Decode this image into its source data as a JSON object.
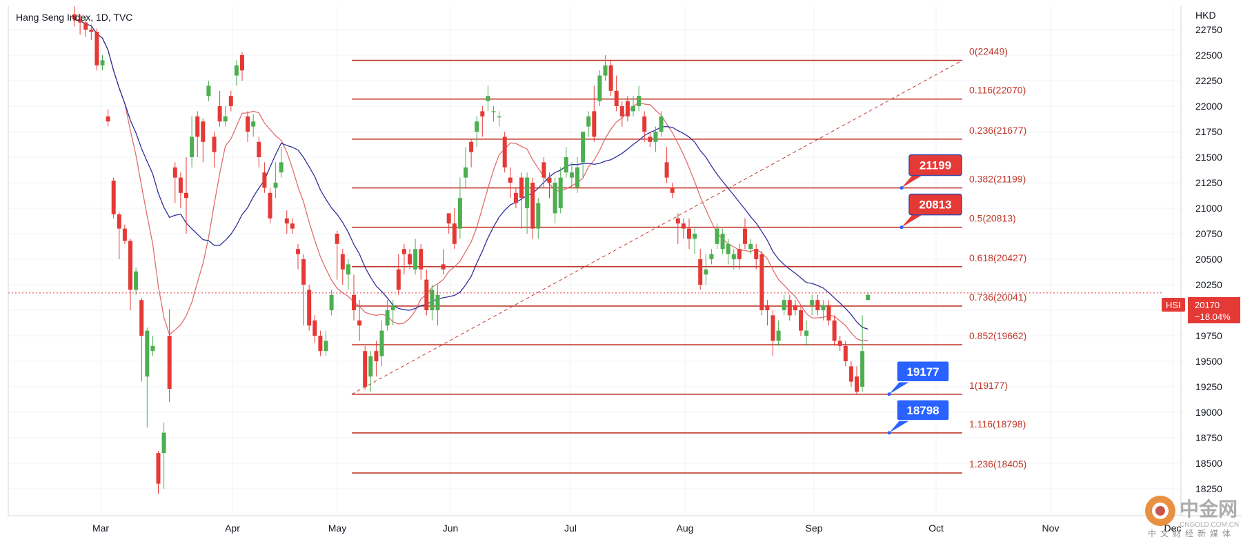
{
  "header": {
    "title": "Hang Seng Index, 1D, TVC"
  },
  "currency": "HKD",
  "symbol_badge": "HSI",
  "last_price": "20170",
  "last_change": "−18.04%",
  "watermark": {
    "cn_name": "中金网",
    "url": "CNGOLD.COM.CN",
    "tagline": "中文财经新媒体"
  },
  "colors": {
    "up": "#4caf50",
    "down": "#e53935",
    "fib": "#c0392b",
    "ma_fast": "#e06c6c",
    "ma_slow": "#2e2e9a",
    "callout_red": "#e53935",
    "callout_blue": "#2962ff",
    "price_badge": "#e53935"
  },
  "chart_data": {
    "type": "candlestick",
    "title": "Hang Seng Index, 1D, TVC",
    "ylabel": "HKD",
    "ylim": [
      18000,
      22900
    ],
    "y_ticks": [
      22750,
      22500,
      22250,
      22000,
      21750,
      21500,
      21250,
      21000,
      20750,
      20500,
      20250,
      20000,
      19750,
      19500,
      19250,
      19000,
      18750,
      18500,
      18250
    ],
    "x_ticks": [
      "Mar",
      "Apr",
      "May",
      "Jun",
      "Jul",
      "Aug",
      "Sep",
      "Oct",
      "Nov",
      "Dec"
    ],
    "current_price": 20170,
    "fib_levels": [
      {
        "ratio": "0",
        "value": 22449
      },
      {
        "ratio": "0.116",
        "value": 22070
      },
      {
        "ratio": "0.236",
        "value": 21677
      },
      {
        "ratio": "0.382",
        "value": 21199
      },
      {
        "ratio": "0.5",
        "value": 20813
      },
      {
        "ratio": "0.618",
        "value": 20427
      },
      {
        "ratio": "0.736",
        "value": 20041
      },
      {
        "ratio": "0.852",
        "value": 19662
      },
      {
        "ratio": "1",
        "value": 19177
      },
      {
        "ratio": "1.116",
        "value": 18798
      },
      {
        "ratio": "1.236",
        "value": 18405
      }
    ],
    "callouts": [
      {
        "value": "21199",
        "color": "red"
      },
      {
        "value": "20813",
        "color": "red"
      },
      {
        "value": "19177",
        "color": "blue"
      },
      {
        "value": "18798",
        "color": "blue"
      }
    ],
    "trend_line": {
      "from_value": 19177,
      "to_value": 22449
    },
    "candles": [
      [
        22900,
        22850,
        22980,
        22780
      ],
      [
        22850,
        22820,
        22900,
        22700
      ],
      [
        22820,
        22750,
        22880,
        22680
      ],
      [
        22750,
        22730,
        22800,
        22650
      ],
      [
        22730,
        22400,
        22760,
        22350
      ],
      [
        22400,
        22450,
        22500,
        22350
      ],
      [
        21900,
        21850,
        21970,
        21800
      ],
      [
        21270,
        20940,
        21300,
        20900
      ],
      [
        20940,
        20800,
        20960,
        20500
      ],
      [
        20800,
        20680,
        20840,
        20650
      ],
      [
        20680,
        20200,
        20700,
        20000
      ],
      [
        20200,
        20380,
        20420,
        20150
      ],
      [
        20100,
        19750,
        20120,
        19300
      ],
      [
        19350,
        19800,
        19830,
        18850
      ],
      [
        19600,
        19650,
        19750,
        19550
      ],
      [
        18600,
        18300,
        18620,
        18200
      ],
      [
        18600,
        18800,
        18900,
        18250
      ],
      [
        19750,
        19230,
        20010,
        19100
      ],
      [
        21400,
        21300,
        21450,
        21050
      ],
      [
        21300,
        21150,
        21350,
        21000
      ],
      [
        21150,
        21100,
        21500,
        20750
      ],
      [
        21500,
        21700,
        21900,
        21400
      ],
      [
        21900,
        21700,
        21950,
        21500
      ],
      [
        21850,
        21650,
        21880,
        21450
      ],
      [
        22100,
        22200,
        22250,
        22050
      ],
      [
        21700,
        21550,
        21750,
        21400
      ],
      [
        22000,
        21850,
        22150,
        21800
      ],
      [
        21850,
        21900,
        22000,
        21800
      ],
      [
        22100,
        22000,
        22150,
        21950
      ],
      [
        22300,
        22400,
        22450,
        22200
      ],
      [
        22500,
        22350,
        22530,
        22250
      ],
      [
        21900,
        21750,
        21950,
        21650
      ],
      [
        21800,
        21850,
        21920,
        21700
      ],
      [
        21650,
        21500,
        21700,
        21400
      ],
      [
        21350,
        21200,
        21450,
        21150
      ],
      [
        21150,
        20900,
        21200,
        20850
      ],
      [
        21200,
        21250,
        21450,
        21100
      ],
      [
        21350,
        21450,
        21600,
        21300
      ],
      [
        20900,
        20850,
        20980,
        20750
      ],
      [
        20850,
        20800,
        20900,
        20750
      ],
      [
        20600,
        20550,
        20650,
        20400
      ],
      [
        20500,
        20250,
        20550,
        19850
      ],
      [
        20200,
        19850,
        20250,
        19800
      ],
      [
        19900,
        19750,
        19950,
        19680
      ],
      [
        19750,
        19600,
        19800,
        19550
      ],
      [
        19600,
        19700,
        19800,
        19550
      ],
      [
        20000,
        20150,
        20200,
        19950
      ],
      [
        20750,
        20650,
        20780,
        20300
      ],
      [
        20550,
        20400,
        20600,
        20250
      ],
      [
        20350,
        20450,
        20500,
        20200
      ],
      [
        20150,
        20000,
        20350,
        19900
      ],
      [
        19900,
        19850,
        20100,
        19700
      ],
      [
        19600,
        19250,
        19650,
        19220
      ],
      [
        19350,
        19550,
        19600,
        19200
      ],
      [
        19600,
        19500,
        19700,
        19350
      ],
      [
        19550,
        19800,
        19900,
        19450
      ],
      [
        19850,
        20000,
        20100,
        19800
      ],
      [
        20000,
        20050,
        20100,
        19850
      ],
      [
        20400,
        20200,
        20550,
        20150
      ],
      [
        20600,
        20550,
        20650,
        20350
      ],
      [
        20550,
        20450,
        20600,
        20400
      ],
      [
        20400,
        20600,
        20700,
        20350
      ],
      [
        20600,
        20400,
        20650,
        20300
      ],
      [
        20300,
        20000,
        20400,
        19950
      ],
      [
        20000,
        20200,
        20250,
        19900
      ],
      [
        20000,
        20150,
        20250,
        19850
      ],
      [
        20450,
        20400,
        20600,
        20350
      ],
      [
        20950,
        20850,
        20950,
        20750
      ],
      [
        20850,
        20650,
        21000,
        20600
      ],
      [
        20800,
        21100,
        21300,
        20700
      ],
      [
        21300,
        21400,
        21600,
        21200
      ],
      [
        21650,
        21550,
        21680,
        21400
      ],
      [
        21750,
        21850,
        21900,
        21600
      ],
      [
        21950,
        21900,
        22000,
        21700
      ],
      [
        22050,
        22100,
        22200,
        21950
      ],
      [
        21950,
        21950,
        22000,
        21850
      ],
      [
        21900,
        21900,
        21950,
        21800
      ],
      [
        21700,
        21400,
        21750,
        21350
      ],
      [
        21300,
        21250,
        21400,
        21100
      ],
      [
        21150,
        21050,
        21200,
        21000
      ],
      [
        21300,
        21100,
        21350,
        20800
      ],
      [
        21000,
        21300,
        21350,
        20750
      ],
      [
        21250,
        20800,
        21300,
        20700
      ],
      [
        20800,
        21050,
        21100,
        20700
      ],
      [
        21450,
        21300,
        21500,
        21200
      ],
      [
        21300,
        21250,
        21350,
        21100
      ],
      [
        20950,
        21250,
        21300,
        20850
      ],
      [
        21000,
        21300,
        21400,
        20950
      ],
      [
        21350,
        21500,
        21600,
        21300
      ],
      [
        21300,
        21350,
        21450,
        21200
      ],
      [
        21200,
        21400,
        21500,
        21150
      ],
      [
        21450,
        21750,
        21750,
        21300
      ],
      [
        21800,
        21900,
        21950,
        21700
      ],
      [
        21950,
        21700,
        22200,
        21650
      ],
      [
        22050,
        22300,
        22350,
        22000
      ],
      [
        22300,
        22400,
        22500,
        22250
      ],
      [
        22400,
        22150,
        22450,
        22100
      ],
      [
        22150,
        22000,
        22300,
        21950
      ],
      [
        22000,
        21900,
        22050,
        21800
      ],
      [
        22050,
        21900,
        22100,
        21850
      ],
      [
        21950,
        22000,
        22100,
        21900
      ],
      [
        22000,
        22100,
        22200,
        21950
      ],
      [
        21900,
        21750,
        21950,
        21650
      ],
      [
        21700,
        21650,
        21750,
        21600
      ],
      [
        21650,
        21750,
        21800,
        21550
      ],
      [
        21750,
        21900,
        21950,
        21700
      ],
      [
        21450,
        21300,
        21600,
        21250
      ],
      [
        21200,
        21150,
        21250,
        21100
      ],
      [
        20900,
        20850,
        20950,
        20650
      ],
      [
        20850,
        20800,
        20900,
        20700
      ],
      [
        20800,
        20700,
        20900,
        20600
      ],
      [
        20700,
        20750,
        20800,
        20550
      ],
      [
        20500,
        20250,
        20600,
        20200
      ],
      [
        20350,
        20400,
        20550,
        20250
      ],
      [
        20500,
        20550,
        20600,
        20450
      ],
      [
        20650,
        20800,
        20850,
        20600
      ],
      [
        20600,
        20750,
        20800,
        20550
      ],
      [
        20550,
        20650,
        20700,
        20450
      ],
      [
        20500,
        20550,
        20600,
        20400
      ],
      [
        20600,
        20500,
        20650,
        20400
      ],
      [
        20800,
        20650,
        20900,
        20600
      ],
      [
        20600,
        20650,
        20700,
        20550
      ],
      [
        20600,
        20500,
        20650,
        20400
      ],
      [
        20550,
        20000,
        20580,
        19950
      ],
      [
        20050,
        20000,
        20100,
        19850
      ],
      [
        19950,
        19700,
        20000,
        19550
      ],
      [
        19700,
        19800,
        19900,
        19650
      ],
      [
        20000,
        20100,
        20150,
        19950
      ],
      [
        20100,
        19950,
        20150,
        19900
      ],
      [
        20050,
        20000,
        20100,
        19950
      ],
      [
        20000,
        19800,
        20050,
        19750
      ],
      [
        19750,
        19800,
        19900,
        19650
      ],
      [
        20050,
        20100,
        20150,
        19950
      ],
      [
        20100,
        20000,
        20150,
        19950
      ],
      [
        20000,
        20050,
        20100,
        19900
      ],
      [
        20050,
        19900,
        20100,
        19850
      ],
      [
        19900,
        19700,
        19950,
        19650
      ],
      [
        19700,
        19650,
        19750,
        19600
      ],
      [
        19650,
        19500,
        19700,
        19450
      ],
      [
        19450,
        19300,
        19500,
        19250
      ],
      [
        19350,
        19200,
        19450,
        19180
      ],
      [
        19250,
        19600,
        19950,
        19200
      ],
      [
        20100,
        20150,
        20170,
        20100
      ]
    ]
  }
}
